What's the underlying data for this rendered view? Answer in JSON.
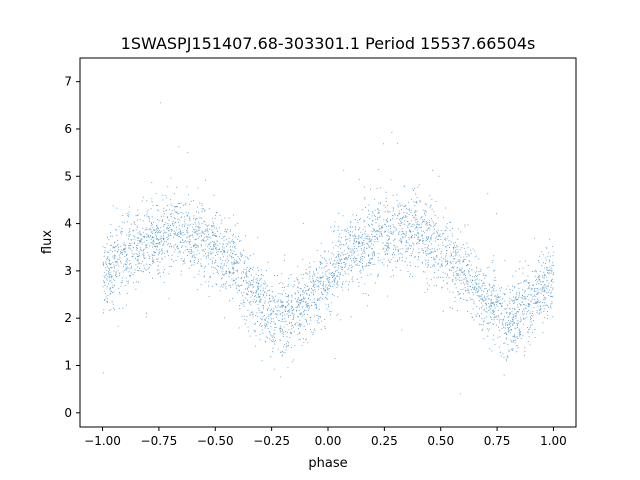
{
  "chart_data": {
    "type": "scatter",
    "title": "1SWASPJ151407.68-303301.1 Period 15537.66504s",
    "xlabel": "phase",
    "ylabel": "flux",
    "xlim": [
      -1.1,
      1.1
    ],
    "ylim": [
      -0.3,
      7.5
    ],
    "xticks": [
      {
        "value": -1.0,
        "label": "−1.00"
      },
      {
        "value": -0.75,
        "label": "−0.75"
      },
      {
        "value": -0.5,
        "label": "−0.50"
      },
      {
        "value": -0.25,
        "label": "−0.25"
      },
      {
        "value": 0.0,
        "label": "0.00"
      },
      {
        "value": 0.25,
        "label": "0.25"
      },
      {
        "value": 0.5,
        "label": "0.50"
      },
      {
        "value": 0.75,
        "label": "0.75"
      },
      {
        "value": 1.0,
        "label": "1.00"
      }
    ],
    "yticks": [
      {
        "value": 0,
        "label": "0"
      },
      {
        "value": 1,
        "label": "1"
      },
      {
        "value": 2,
        "label": "2"
      },
      {
        "value": 3,
        "label": "3"
      },
      {
        "value": 4,
        "label": "4"
      },
      {
        "value": 5,
        "label": "5"
      },
      {
        "value": 6,
        "label": "6"
      },
      {
        "value": 7,
        "label": "7"
      }
    ],
    "grid": false,
    "marker_color": "#1f77b4",
    "series": [
      {
        "phase_range": [
          -1.0,
          1.0
        ],
        "binned_mean_flux": {
          "phase": [
            -1.0,
            -0.9,
            -0.8,
            -0.75,
            -0.7,
            -0.65,
            -0.6,
            -0.5,
            -0.4,
            -0.3,
            -0.25,
            -0.2,
            -0.15,
            -0.1,
            0.0,
            0.1,
            0.2,
            0.25,
            0.3,
            0.35,
            0.4,
            0.5,
            0.6,
            0.7,
            0.75,
            0.8,
            0.85,
            0.9,
            1.0
          ],
          "flux": [
            2.9,
            3.3,
            3.65,
            3.75,
            3.85,
            3.85,
            3.8,
            3.5,
            3.0,
            2.35,
            2.1,
            2.0,
            2.05,
            2.3,
            2.9,
            3.4,
            3.7,
            3.8,
            3.85,
            3.85,
            3.8,
            3.5,
            3.0,
            2.35,
            2.1,
            2.0,
            2.05,
            2.3,
            2.9
          ]
        },
        "scatter_sd": 0.4
      }
    ]
  }
}
